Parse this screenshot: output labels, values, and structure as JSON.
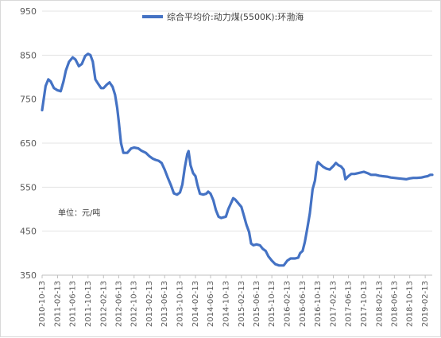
{
  "chart_data": {
    "type": "line",
    "title": "",
    "xlabel": "",
    "ylabel": "",
    "ylim": [
      350,
      950
    ],
    "y_ticks": [
      350,
      450,
      550,
      650,
      750,
      850,
      950
    ],
    "grid": "horizontal",
    "legend_position": "top-center",
    "unit_note": "单位：元/吨",
    "x_tick_labels": [
      "2010-10-13",
      "2011-02-13",
      "2011-06-13",
      "2011-10-13",
      "2012-02-13",
      "2012-06-13",
      "2012-10-13",
      "2013-02-13",
      "2013-06-13",
      "2013-10-13",
      "2014-02-13",
      "2014-06-13",
      "2014-10-13",
      "2015-02-13",
      "2015-06-13",
      "2015-10-13",
      "2016-02-13",
      "2016-06-13",
      "2016-10-13",
      "2017-02-13",
      "2017-06-13",
      "2017-10-13",
      "2018-02-13",
      "2018-06-13",
      "2018-10-13",
      "2019-02-13"
    ],
    "series": [
      {
        "name": "综合平均价:动力煤(5500K):环渤海",
        "color": "#4472C4",
        "points": [
          [
            "2010-10-13",
            725
          ],
          [
            "2010-11-10",
            780
          ],
          [
            "2010-12-01",
            795
          ],
          [
            "2010-12-20",
            790
          ],
          [
            "2011-01-15",
            775
          ],
          [
            "2011-02-13",
            770
          ],
          [
            "2011-03-10",
            768
          ],
          [
            "2011-04-01",
            790
          ],
          [
            "2011-04-20",
            815
          ],
          [
            "2011-05-15",
            835
          ],
          [
            "2011-06-13",
            845
          ],
          [
            "2011-07-05",
            840
          ],
          [
            "2011-08-01",
            825
          ],
          [
            "2011-08-25",
            830
          ],
          [
            "2011-09-20",
            848
          ],
          [
            "2011-10-13",
            853
          ],
          [
            "2011-11-01",
            850
          ],
          [
            "2011-11-20",
            835
          ],
          [
            "2011-12-10",
            795
          ],
          [
            "2012-01-01",
            785
          ],
          [
            "2012-01-25",
            775
          ],
          [
            "2012-02-13",
            775
          ],
          [
            "2012-03-10",
            783
          ],
          [
            "2012-04-01",
            788
          ],
          [
            "2012-04-25",
            778
          ],
          [
            "2012-05-15",
            760
          ],
          [
            "2012-06-01",
            730
          ],
          [
            "2012-06-13",
            700
          ],
          [
            "2012-07-01",
            650
          ],
          [
            "2012-07-20",
            628
          ],
          [
            "2012-08-20",
            628
          ],
          [
            "2012-09-20",
            638
          ],
          [
            "2012-10-13",
            640
          ],
          [
            "2012-11-15",
            638
          ],
          [
            "2012-12-10",
            633
          ],
          [
            "2013-01-15",
            628
          ],
          [
            "2013-02-13",
            620
          ],
          [
            "2013-03-10",
            615
          ],
          [
            "2013-04-01",
            612
          ],
          [
            "2013-04-25",
            610
          ],
          [
            "2013-05-20",
            605
          ],
          [
            "2013-06-13",
            590
          ],
          [
            "2013-07-10",
            570
          ],
          [
            "2013-08-01",
            555
          ],
          [
            "2013-08-25",
            536
          ],
          [
            "2013-09-20",
            533
          ],
          [
            "2013-10-13",
            538
          ],
          [
            "2013-11-01",
            556
          ],
          [
            "2013-11-20",
            595
          ],
          [
            "2013-12-10",
            625
          ],
          [
            "2013-12-20",
            632
          ],
          [
            "2014-01-05",
            600
          ],
          [
            "2014-01-25",
            582
          ],
          [
            "2014-02-13",
            575
          ],
          [
            "2014-03-01",
            555
          ],
          [
            "2014-03-20",
            535
          ],
          [
            "2014-04-15",
            533
          ],
          [
            "2014-05-10",
            535
          ],
          [
            "2014-05-25",
            540
          ],
          [
            "2014-06-13",
            535
          ],
          [
            "2014-07-05",
            520
          ],
          [
            "2014-07-25",
            498
          ],
          [
            "2014-08-15",
            483
          ],
          [
            "2014-09-05",
            480
          ],
          [
            "2014-10-13",
            483
          ],
          [
            "2014-11-01",
            500
          ],
          [
            "2014-11-20",
            512
          ],
          [
            "2014-12-10",
            525
          ],
          [
            "2014-12-25",
            522
          ],
          [
            "2015-01-15",
            515
          ],
          [
            "2015-02-13",
            505
          ],
          [
            "2015-03-05",
            485
          ],
          [
            "2015-03-25",
            465
          ],
          [
            "2015-04-15",
            448
          ],
          [
            "2015-05-01",
            422
          ],
          [
            "2015-05-20",
            418
          ],
          [
            "2015-06-13",
            420
          ],
          [
            "2015-07-10",
            418
          ],
          [
            "2015-08-01",
            410
          ],
          [
            "2015-08-25",
            405
          ],
          [
            "2015-09-15",
            393
          ],
          [
            "2015-10-13",
            383
          ],
          [
            "2015-11-10",
            375
          ],
          [
            "2015-12-10",
            372
          ],
          [
            "2016-01-15",
            372
          ],
          [
            "2016-02-13",
            383
          ],
          [
            "2016-03-10",
            388
          ],
          [
            "2016-04-15",
            388
          ],
          [
            "2016-05-10",
            390
          ],
          [
            "2016-05-25",
            400
          ],
          [
            "2016-06-13",
            405
          ],
          [
            "2016-07-01",
            425
          ],
          [
            "2016-07-20",
            455
          ],
          [
            "2016-08-10",
            490
          ],
          [
            "2016-09-01",
            545
          ],
          [
            "2016-09-20",
            565
          ],
          [
            "2016-10-05",
            600
          ],
          [
            "2016-10-13",
            607
          ],
          [
            "2016-11-01",
            602
          ],
          [
            "2016-11-25",
            596
          ],
          [
            "2016-12-20",
            592
          ],
          [
            "2017-01-15",
            590
          ],
          [
            "2017-02-13",
            598
          ],
          [
            "2017-03-05",
            605
          ],
          [
            "2017-03-25",
            600
          ],
          [
            "2017-04-15",
            597
          ],
          [
            "2017-05-05",
            590
          ],
          [
            "2017-05-20",
            568
          ],
          [
            "2017-06-13",
            575
          ],
          [
            "2017-07-05",
            580
          ],
          [
            "2017-08-01",
            580
          ],
          [
            "2017-09-01",
            582
          ],
          [
            "2017-10-13",
            585
          ],
          [
            "2017-11-10",
            582
          ],
          [
            "2017-12-10",
            578
          ],
          [
            "2018-01-15",
            578
          ],
          [
            "2018-02-13",
            576
          ],
          [
            "2018-03-10",
            575
          ],
          [
            "2018-04-15",
            574
          ],
          [
            "2018-05-15",
            572
          ],
          [
            "2018-06-13",
            571
          ],
          [
            "2018-07-15",
            570
          ],
          [
            "2018-08-15",
            569
          ],
          [
            "2018-09-15",
            568
          ],
          [
            "2018-10-13",
            570
          ],
          [
            "2018-11-10",
            571
          ],
          [
            "2018-12-10",
            571
          ],
          [
            "2019-01-15",
            572
          ],
          [
            "2019-02-13",
            574
          ],
          [
            "2019-03-05",
            575
          ],
          [
            "2019-03-25",
            578
          ],
          [
            "2019-04-10",
            578
          ]
        ]
      }
    ]
  }
}
